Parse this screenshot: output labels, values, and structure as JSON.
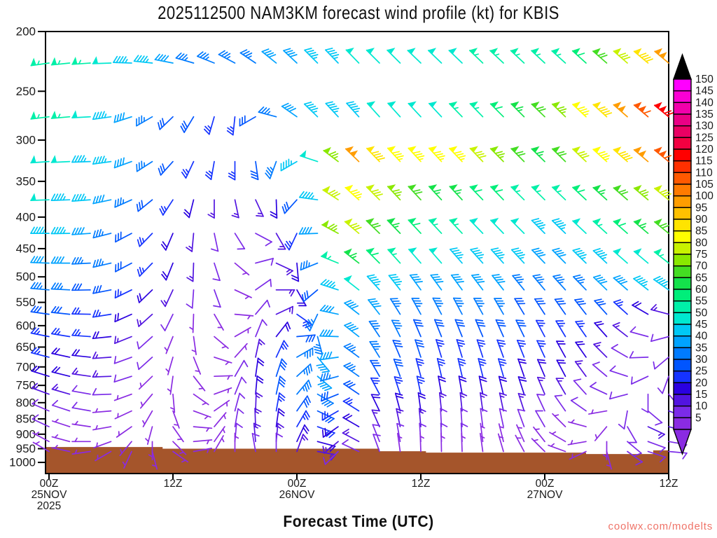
{
  "title": {
    "text": "2025112500 NAM3KM forecast wind profile (kt) for KBIS"
  },
  "xaxis_title": {
    "text": "Forecast Time (UTC)"
  },
  "watermark": {
    "text": "coolwx.com/modelts",
    "color": "#ef7368"
  },
  "chart_data": {
    "type": "wind-barb-profile",
    "title": "2025112500 NAM3KM forecast wind profile (kt) for KBIS",
    "xlabel": "Forecast Time (UTC)",
    "ylabel_units": "hPa",
    "speed_units": "kt",
    "y_scale": "log",
    "y_ticks": [
      200,
      250,
      300,
      350,
      400,
      450,
      500,
      550,
      600,
      650,
      700,
      750,
      800,
      850,
      900,
      950,
      1000
    ],
    "y_range": [
      200,
      1050
    ],
    "x_ticks": [
      {
        "hour": 0,
        "lines": [
          "00Z",
          "25NOV",
          "2025"
        ]
      },
      {
        "hour": 12,
        "lines": [
          "12Z"
        ]
      },
      {
        "hour": 24,
        "lines": [
          "00Z",
          "26NOV"
        ]
      },
      {
        "hour": 36,
        "lines": [
          "12Z"
        ]
      },
      {
        "hour": 48,
        "lines": [
          "00Z",
          "27NOV"
        ]
      },
      {
        "hour": 60,
        "lines": [
          "12Z"
        ]
      }
    ],
    "colorbar": {
      "values": [
        5,
        10,
        15,
        20,
        25,
        30,
        35,
        40,
        45,
        50,
        55,
        60,
        65,
        70,
        75,
        80,
        85,
        90,
        95,
        100,
        105,
        110,
        115,
        120,
        125,
        130,
        135,
        140,
        145,
        150
      ],
      "over_color": "#000000",
      "under_color": "#8a2be2"
    },
    "palette": [
      "#8a2be2",
      "#7b2be8",
      "#5214e0",
      "#2a00e0",
      "#1533ff",
      "#0055ff",
      "#007bff",
      "#00a3ff",
      "#00c8f5",
      "#00e8d0",
      "#00f0a8",
      "#00ee7a",
      "#14e24b",
      "#44dd22",
      "#8ae800",
      "#c8f200",
      "#ffff00",
      "#ffe400",
      "#ffc100",
      "#ff9d00",
      "#ff7b00",
      "#ff5900",
      "#ff3000",
      "#ff0000",
      "#f30041",
      "#ea0063",
      "#ea0085",
      "#f200ab",
      "#fb00d4",
      "#ff00ff"
    ],
    "terrain": {
      "color": "#a5552b",
      "segments": [
        {
          "from_hour": 0,
          "to_hour": 11,
          "p": 944
        },
        {
          "from_hour": 11,
          "to_hour": 32,
          "p": 950
        },
        {
          "from_hour": 32,
          "to_hour": 36.5,
          "p": 959
        },
        {
          "from_hour": 36.5,
          "to_hour": 52,
          "p": 964
        },
        {
          "from_hour": 52,
          "to_hour": 58.5,
          "p": 969
        },
        {
          "from_hour": 58.5,
          "to_hour": 60,
          "p": 956
        }
      ]
    },
    "hours": [
      0,
      2,
      4,
      6,
      8,
      10,
      12,
      14,
      16,
      18,
      20,
      22,
      24,
      26,
      28,
      30,
      32,
      34,
      36,
      38,
      40,
      42,
      44,
      46,
      48,
      50,
      52,
      54,
      56,
      58,
      60
    ],
    "levels": [
      225,
      275,
      325,
      375,
      425,
      475,
      525,
      575,
      625,
      675,
      725,
      775,
      825,
      875,
      925,
      960
    ],
    "speeds": [
      [
        55,
        55,
        55,
        50,
        45,
        45,
        40,
        35,
        35,
        35,
        35,
        40,
        40,
        45,
        45,
        50,
        50,
        50,
        50,
        50,
        50,
        55,
        55,
        55,
        55,
        55,
        60,
        70,
        80,
        90,
        100
      ],
      [
        55,
        55,
        50,
        45,
        40,
        35,
        30,
        30,
        25,
        25,
        30,
        35,
        40,
        45,
        45,
        45,
        50,
        50,
        50,
        50,
        55,
        55,
        60,
        65,
        70,
        75,
        85,
        90,
        100,
        110,
        120
      ],
      [
        50,
        50,
        45,
        45,
        40,
        35,
        30,
        25,
        25,
        25,
        30,
        35,
        45,
        50,
        75,
        100,
        90,
        85,
        85,
        85,
        85,
        80,
        75,
        70,
        65,
        70,
        80,
        85,
        90,
        100,
        110
      ],
      [
        50,
        45,
        45,
        40,
        35,
        30,
        25,
        20,
        15,
        15,
        15,
        20,
        30,
        45,
        80,
        85,
        80,
        75,
        70,
        65,
        65,
        60,
        60,
        55,
        55,
        55,
        60,
        65,
        70,
        75,
        80
      ],
      [
        45,
        45,
        40,
        35,
        30,
        25,
        20,
        15,
        10,
        10,
        10,
        15,
        25,
        40,
        75,
        80,
        70,
        65,
        60,
        55,
        55,
        50,
        50,
        50,
        45,
        45,
        50,
        55,
        60,
        65,
        70
      ],
      [
        40,
        40,
        35,
        35,
        30,
        25,
        20,
        15,
        10,
        5,
        10,
        15,
        20,
        35,
        55,
        65,
        60,
        55,
        50,
        50,
        45,
        45,
        45,
        45,
        40,
        40,
        45,
        45,
        50,
        50,
        55
      ],
      [
        35,
        35,
        30,
        30,
        25,
        20,
        15,
        10,
        10,
        5,
        10,
        15,
        20,
        30,
        45,
        50,
        45,
        45,
        40,
        40,
        40,
        40,
        40,
        35,
        35,
        35,
        35,
        40,
        40,
        45,
        45
      ],
      [
        30,
        30,
        25,
        25,
        20,
        15,
        10,
        5,
        5,
        5,
        10,
        15,
        25,
        35,
        40,
        40,
        40,
        35,
        35,
        35,
        35,
        35,
        35,
        30,
        30,
        30,
        30,
        30,
        25,
        20,
        15
      ],
      [
        25,
        25,
        25,
        20,
        15,
        10,
        5,
        5,
        5,
        5,
        10,
        20,
        30,
        35,
        40,
        40,
        35,
        35,
        30,
        30,
        30,
        30,
        30,
        30,
        25,
        25,
        25,
        20,
        15,
        10,
        10
      ],
      [
        25,
        20,
        20,
        15,
        10,
        10,
        5,
        5,
        5,
        5,
        15,
        25,
        35,
        40,
        40,
        35,
        35,
        30,
        30,
        25,
        25,
        25,
        25,
        25,
        25,
        20,
        20,
        15,
        10,
        10,
        10
      ],
      [
        20,
        20,
        15,
        15,
        10,
        5,
        5,
        5,
        5,
        10,
        20,
        30,
        35,
        40,
        35,
        35,
        30,
        30,
        25,
        25,
        25,
        25,
        25,
        20,
        20,
        20,
        15,
        10,
        10,
        10,
        10
      ],
      [
        15,
        15,
        10,
        10,
        5,
        5,
        5,
        5,
        5,
        10,
        20,
        30,
        35,
        35,
        30,
        30,
        25,
        25,
        25,
        20,
        20,
        20,
        20,
        20,
        15,
        15,
        10,
        10,
        10,
        10,
        10
      ],
      [
        10,
        10,
        10,
        5,
        5,
        5,
        5,
        5,
        5,
        10,
        15,
        25,
        30,
        30,
        25,
        25,
        20,
        20,
        20,
        15,
        15,
        15,
        15,
        15,
        10,
        10,
        10,
        5,
        10,
        10,
        15
      ],
      [
        10,
        5,
        5,
        5,
        5,
        5,
        5,
        5,
        5,
        10,
        15,
        20,
        25,
        25,
        20,
        20,
        15,
        15,
        15,
        10,
        10,
        10,
        10,
        10,
        10,
        5,
        5,
        5,
        10,
        15,
        15
      ],
      [
        5,
        5,
        5,
        5,
        5,
        5,
        5,
        5,
        5,
        10,
        15,
        15,
        20,
        20,
        15,
        15,
        10,
        10,
        10,
        10,
        10,
        5,
        5,
        5,
        5,
        5,
        5,
        5,
        10,
        10,
        10
      ],
      [
        5,
        5,
        5,
        5,
        5,
        5,
        5,
        5,
        5,
        5,
        10,
        10,
        15,
        15,
        10,
        10,
        10,
        5,
        5,
        5,
        5,
        5,
        5,
        5,
        5,
        5,
        5,
        5,
        10,
        10,
        10
      ]
    ],
    "dirs": [
      [
        262,
        264,
        266,
        268,
        272,
        276,
        281,
        286,
        292,
        298,
        304,
        309,
        313,
        315,
        316,
        316,
        315,
        315,
        314,
        314,
        314,
        314,
        313,
        313,
        313,
        312,
        312,
        311,
        311,
        310,
        310
      ],
      [
        263,
        265,
        267,
        262,
        252,
        240,
        226,
        211,
        196,
        186,
        240,
        285,
        305,
        314,
        317,
        318,
        318,
        318,
        317,
        317,
        316,
        316,
        315,
        315,
        314,
        314,
        313,
        312,
        311,
        310,
        309
      ],
      [
        266,
        267,
        268,
        262,
        250,
        237,
        222,
        205,
        190,
        180,
        172,
        200,
        240,
        288,
        307,
        314,
        316,
        317,
        317,
        317,
        316,
        316,
        315,
        315,
        314,
        314,
        313,
        312,
        311,
        310,
        309
      ],
      [
        268,
        268,
        266,
        258,
        246,
        231,
        213,
        194,
        180,
        168,
        155,
        178,
        222,
        278,
        303,
        312,
        315,
        317,
        317,
        317,
        317,
        316,
        316,
        315,
        315,
        314,
        313,
        312,
        311,
        310,
        309
      ],
      [
        270,
        269,
        266,
        256,
        242,
        224,
        203,
        185,
        168,
        148,
        118,
        150,
        205,
        268,
        298,
        310,
        314,
        316,
        317,
        317,
        317,
        316,
        316,
        315,
        315,
        314,
        313,
        312,
        311,
        310,
        309
      ],
      [
        272,
        270,
        267,
        257,
        242,
        224,
        202,
        182,
        162,
        130,
        75,
        115,
        175,
        248,
        292,
        308,
        315,
        318,
        319,
        319,
        319,
        318,
        318,
        317,
        316,
        315,
        314,
        313,
        311,
        310,
        308
      ],
      [
        275,
        273,
        269,
        259,
        244,
        226,
        205,
        184,
        160,
        115,
        55,
        90,
        150,
        230,
        288,
        308,
        318,
        322,
        324,
        324,
        324,
        323,
        322,
        321,
        320,
        318,
        316,
        314,
        311,
        308,
        305
      ],
      [
        278,
        276,
        271,
        261,
        246,
        228,
        206,
        182,
        150,
        95,
        40,
        65,
        125,
        205,
        282,
        308,
        322,
        328,
        331,
        332,
        332,
        331,
        330,
        329,
        327,
        325,
        322,
        318,
        312,
        300,
        285
      ],
      [
        281,
        279,
        274,
        264,
        248,
        228,
        202,
        172,
        130,
        60,
        22,
        38,
        85,
        165,
        272,
        308,
        326,
        333,
        337,
        338,
        338,
        337,
        336,
        334,
        332,
        329,
        325,
        318,
        308,
        285,
        255
      ],
      [
        284,
        282,
        276,
        266,
        250,
        228,
        196,
        158,
        108,
        42,
        12,
        25,
        60,
        140,
        262,
        306,
        328,
        337,
        342,
        343,
        343,
        342,
        340,
        338,
        335,
        331,
        325,
        315,
        300,
        268,
        230
      ],
      [
        287,
        284,
        278,
        268,
        252,
        226,
        188,
        142,
        88,
        30,
        8,
        18,
        48,
        130,
        255,
        305,
        330,
        340,
        345,
        347,
        347,
        346,
        344,
        341,
        337,
        332,
        324,
        310,
        288,
        245,
        200
      ],
      [
        290,
        286,
        280,
        268,
        250,
        220,
        175,
        125,
        70,
        22,
        5,
        12,
        40,
        120,
        248,
        304,
        332,
        342,
        348,
        350,
        350,
        349,
        346,
        342,
        337,
        330,
        318,
        295,
        255,
        180,
        140
      ],
      [
        293,
        288,
        280,
        265,
        245,
        210,
        160,
        110,
        55,
        15,
        2,
        10,
        35,
        115,
        240,
        302,
        334,
        345,
        352,
        354,
        354,
        352,
        348,
        342,
        335,
        325,
        305,
        260,
        190,
        130,
        110
      ],
      [
        295,
        288,
        278,
        260,
        235,
        195,
        145,
        95,
        40,
        10,
        358,
        8,
        30,
        110,
        235,
        300,
        336,
        348,
        355,
        357,
        356,
        353,
        348,
        340,
        330,
        315,
        285,
        220,
        150,
        115,
        105
      ],
      [
        298,
        285,
        270,
        250,
        220,
        180,
        135,
        85,
        35,
        5,
        355,
        5,
        25,
        105,
        230,
        298,
        338,
        350,
        356,
        358,
        357,
        353,
        346,
        336,
        322,
        300,
        260,
        180,
        130,
        110,
        100
      ],
      [
        300,
        282,
        262,
        240,
        205,
        165,
        125,
        80,
        30,
        0,
        350,
        0,
        20,
        100,
        225,
        295,
        340,
        352,
        358,
        359,
        358,
        352,
        344,
        332,
        315,
        290,
        245,
        165,
        125,
        108,
        95
      ]
    ]
  }
}
